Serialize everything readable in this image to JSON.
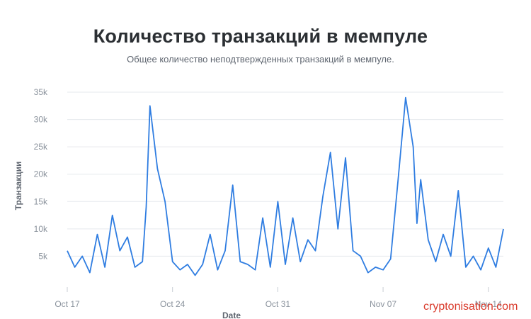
{
  "watermark": "cryptonisation.com",
  "chart_data": {
    "type": "line",
    "title": "Количество транзакций в мемпуле",
    "subtitle": "Общее количество неподтвержденных транзакций в мемпуле.",
    "xlabel": "Date",
    "ylabel": "Транзакции",
    "ylim": [
      0,
      35000
    ],
    "y_ticks": [
      5000,
      10000,
      15000,
      20000,
      25000,
      30000,
      35000
    ],
    "y_tick_labels": [
      "5k",
      "10k",
      "15k",
      "20k",
      "25k",
      "30k",
      "35k"
    ],
    "x_range": [
      "2021-10-17",
      "2021-11-15"
    ],
    "x_ticks": [
      "2021-10-17",
      "2021-10-24",
      "2021-10-31",
      "2021-11-07",
      "2021-11-14"
    ],
    "x_tick_labels": [
      "Oct 17",
      "Oct 24",
      "Oct 31",
      "Nov 07",
      "Nov 14"
    ],
    "grid": true,
    "color": "#2f7de1",
    "series": [
      {
        "x": [
          "2021-10-17",
          "2021-10-17 12:00",
          "2021-10-18",
          "2021-10-18 12:00",
          "2021-10-19",
          "2021-10-19 12:00",
          "2021-10-20",
          "2021-10-20 12:00",
          "2021-10-21",
          "2021-10-21 12:00",
          "2021-10-22",
          "2021-10-22 06:00",
          "2021-10-22 12:00",
          "2021-10-23",
          "2021-10-23 12:00",
          "2021-10-24",
          "2021-10-24 12:00",
          "2021-10-25",
          "2021-10-25 12:00",
          "2021-10-26",
          "2021-10-26 12:00",
          "2021-10-27",
          "2021-10-27 12:00",
          "2021-10-28",
          "2021-10-28 12:00",
          "2021-10-29",
          "2021-10-29 12:00",
          "2021-10-30",
          "2021-10-30 12:00",
          "2021-10-31",
          "2021-10-31 12:00",
          "2021-11-01",
          "2021-11-01 12:00",
          "2021-11-02",
          "2021-11-02 12:00",
          "2021-11-03",
          "2021-11-03 12:00",
          "2021-11-04",
          "2021-11-04 12:00",
          "2021-11-05",
          "2021-11-05 12:00",
          "2021-11-06",
          "2021-11-06 12:00",
          "2021-11-07",
          "2021-11-07 12:00",
          "2021-11-08",
          "2021-11-08 12:00",
          "2021-11-09",
          "2021-11-09 06:00",
          "2021-11-09 12:00",
          "2021-11-10",
          "2021-11-10 12:00",
          "2021-11-11",
          "2021-11-11 12:00",
          "2021-11-12",
          "2021-11-12 12:00",
          "2021-11-13",
          "2021-11-13 12:00",
          "2021-11-14",
          "2021-11-14 12:00",
          "2021-11-15"
        ],
        "y": [
          6000,
          3000,
          5000,
          2000,
          9000,
          3000,
          12500,
          6000,
          8500,
          3000,
          4000,
          14000,
          32500,
          21000,
          15000,
          4000,
          2500,
          3500,
          1500,
          3500,
          9000,
          2500,
          6000,
          18000,
          4000,
          3500,
          2500,
          12000,
          3000,
          15000,
          3500,
          12000,
          4000,
          8000,
          6000,
          16000,
          24000,
          10000,
          23000,
          6000,
          5000,
          2000,
          3000,
          2500,
          4500,
          19000,
          34000,
          25000,
          11000,
          19000,
          8000,
          4000,
          9000,
          5000,
          17000,
          3000,
          5000,
          2500,
          6500,
          3000,
          10000
        ]
      }
    ]
  }
}
